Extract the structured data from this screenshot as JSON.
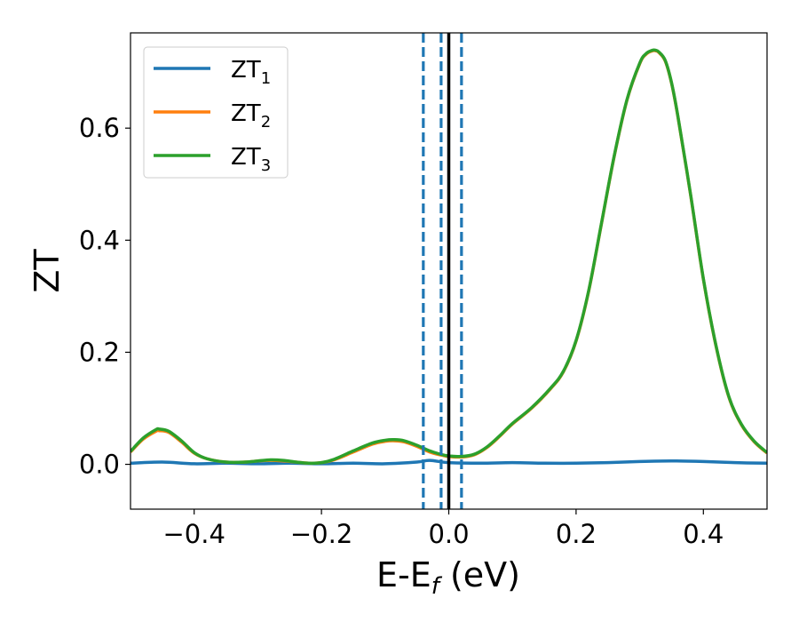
{
  "chart_data": {
    "type": "line",
    "title": "",
    "xlabel": {
      "main": "E-E",
      "sub": "f",
      "suffix": " (eV)"
    },
    "ylabel": "ZT",
    "xlim": [
      -0.5,
      0.5
    ],
    "ylim": [
      -0.08,
      0.77
    ],
    "xticks": [
      -0.4,
      -0.2,
      0.0,
      0.2,
      0.4
    ],
    "xtick_labels": [
      "−0.4",
      "−0.2",
      "0.0",
      "0.2",
      "0.4"
    ],
    "yticks": [
      0.0,
      0.2,
      0.4,
      0.6
    ],
    "ytick_labels": [
      "0.0",
      "0.2",
      "0.4",
      "0.6"
    ],
    "grid": false,
    "legend_position": "top-left",
    "vertical_lines": [
      {
        "x": -0.04,
        "style": "dashed",
        "color": "#1f77b4"
      },
      {
        "x": -0.012,
        "style": "dashed",
        "color": "#1f77b4"
      },
      {
        "x": 0.0,
        "style": "solid",
        "color": "#000000"
      },
      {
        "x": 0.02,
        "style": "dashed",
        "color": "#1f77b4"
      }
    ],
    "series": [
      {
        "name": "ZT",
        "subscript": "1",
        "color": "#1f77b4",
        "x": [
          -0.5,
          -0.45,
          -0.4,
          -0.35,
          -0.3,
          -0.25,
          -0.2,
          -0.15,
          -0.1,
          -0.05,
          -0.03,
          0.0,
          0.05,
          0.1,
          0.15,
          0.2,
          0.25,
          0.3,
          0.35,
          0.4,
          0.45,
          0.5
        ],
        "y": [
          0.002,
          0.004,
          0.001,
          0.002,
          0.001,
          0.002,
          0.001,
          0.002,
          0.001,
          0.004,
          0.007,
          0.003,
          0.002,
          0.003,
          0.002,
          0.002,
          0.003,
          0.005,
          0.006,
          0.005,
          0.003,
          0.002
        ]
      },
      {
        "name": "ZT",
        "subscript": "2",
        "color": "#ff7f0e",
        "x": [
          -0.5,
          -0.48,
          -0.46,
          -0.455,
          -0.44,
          -0.42,
          -0.4,
          -0.38,
          -0.35,
          -0.32,
          -0.3,
          -0.28,
          -0.26,
          -0.24,
          -0.22,
          -0.2,
          -0.18,
          -0.15,
          -0.12,
          -0.1,
          -0.085,
          -0.07,
          -0.05,
          -0.03,
          -0.01,
          0.0,
          0.02,
          0.04,
          0.06,
          0.08,
          0.1,
          0.13,
          0.16,
          0.18,
          0.2,
          0.22,
          0.24,
          0.26,
          0.28,
          0.3,
          0.31,
          0.32,
          0.325,
          0.33,
          0.34,
          0.35,
          0.36,
          0.38,
          0.4,
          0.42,
          0.44,
          0.46,
          0.48,
          0.5
        ],
        "y": [
          0.022,
          0.045,
          0.059,
          0.06,
          0.057,
          0.04,
          0.02,
          0.01,
          0.004,
          0.004,
          0.006,
          0.007,
          0.006,
          0.004,
          0.002,
          0.003,
          0.008,
          0.022,
          0.036,
          0.041,
          0.042,
          0.04,
          0.032,
          0.022,
          0.016,
          0.014,
          0.013,
          0.017,
          0.03,
          0.05,
          0.072,
          0.1,
          0.135,
          0.165,
          0.22,
          0.31,
          0.43,
          0.55,
          0.65,
          0.715,
          0.732,
          0.738,
          0.738,
          0.735,
          0.72,
          0.68,
          0.62,
          0.48,
          0.33,
          0.21,
          0.12,
          0.07,
          0.04,
          0.02
        ]
      },
      {
        "name": "ZT",
        "subscript": "3",
        "color": "#2ca02c",
        "x": [
          -0.5,
          -0.48,
          -0.46,
          -0.455,
          -0.44,
          -0.42,
          -0.4,
          -0.38,
          -0.35,
          -0.32,
          -0.3,
          -0.28,
          -0.26,
          -0.24,
          -0.22,
          -0.2,
          -0.18,
          -0.15,
          -0.12,
          -0.1,
          -0.085,
          -0.07,
          -0.05,
          -0.03,
          -0.01,
          0.0,
          0.02,
          0.04,
          0.06,
          0.08,
          0.1,
          0.13,
          0.16,
          0.18,
          0.2,
          0.22,
          0.24,
          0.26,
          0.28,
          0.3,
          0.31,
          0.32,
          0.325,
          0.33,
          0.34,
          0.35,
          0.36,
          0.38,
          0.4,
          0.42,
          0.44,
          0.46,
          0.48,
          0.5
        ],
        "y": [
          0.023,
          0.047,
          0.062,
          0.063,
          0.059,
          0.042,
          0.021,
          0.01,
          0.004,
          0.004,
          0.006,
          0.008,
          0.007,
          0.004,
          0.002,
          0.003,
          0.009,
          0.024,
          0.038,
          0.043,
          0.044,
          0.042,
          0.034,
          0.024,
          0.017,
          0.015,
          0.014,
          0.018,
          0.031,
          0.051,
          0.073,
          0.101,
          0.136,
          0.166,
          0.221,
          0.311,
          0.431,
          0.551,
          0.651,
          0.716,
          0.733,
          0.739,
          0.739,
          0.736,
          0.721,
          0.681,
          0.621,
          0.481,
          0.331,
          0.211,
          0.121,
          0.071,
          0.041,
          0.021
        ]
      }
    ]
  }
}
